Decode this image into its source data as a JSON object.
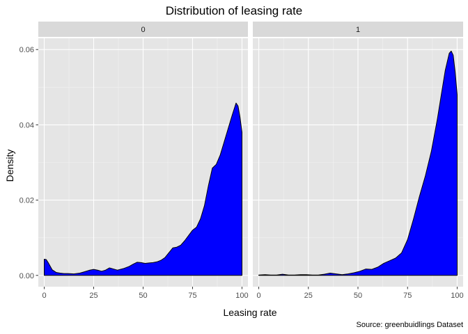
{
  "chart_data": {
    "type": "area",
    "title": "Distribution of leasing rate",
    "xlabel": "Leasing rate",
    "ylabel": "Density",
    "caption": "Source: greenbuidlings Dataset",
    "xlim": [
      -3,
      103
    ],
    "ylim": [
      -0.003,
      0.063
    ],
    "x_ticks": [
      0,
      25,
      50,
      75,
      100
    ],
    "y_ticks": [
      0.0,
      0.02,
      0.04,
      0.06
    ],
    "x_tick_labels": [
      "0",
      "25",
      "50",
      "75",
      "100"
    ],
    "y_tick_labels": [
      "0.00",
      "0.02",
      "0.04",
      "0.06"
    ],
    "fill_color": "#0000ff",
    "line_color": "#000000",
    "panel_background": "#e5e5e5",
    "strip_background": "#d9d9d9",
    "grid": true,
    "facets": [
      {
        "label": "0",
        "x": [
          0,
          1,
          2,
          4,
          6,
          8,
          10,
          12,
          15,
          18,
          20,
          23,
          25,
          27,
          29,
          31,
          33,
          35,
          37,
          40,
          43,
          45,
          47,
          49,
          51,
          53,
          55,
          57,
          59,
          61,
          63,
          65,
          67,
          69,
          71,
          73,
          75,
          77,
          79,
          81,
          83,
          85,
          87,
          89,
          91,
          93,
          95,
          97,
          98,
          99,
          100
        ],
        "y": [
          0.0043,
          0.0042,
          0.0034,
          0.0015,
          0.0008,
          0.0006,
          0.0005,
          0.0005,
          0.0004,
          0.0006,
          0.0009,
          0.0014,
          0.0016,
          0.0014,
          0.0011,
          0.0014,
          0.002,
          0.0017,
          0.0014,
          0.0018,
          0.0024,
          0.003,
          0.0035,
          0.0034,
          0.0032,
          0.0033,
          0.0034,
          0.0036,
          0.004,
          0.0047,
          0.006,
          0.0073,
          0.0075,
          0.008,
          0.0092,
          0.0106,
          0.012,
          0.0128,
          0.015,
          0.0185,
          0.0238,
          0.0285,
          0.0295,
          0.032,
          0.0355,
          0.039,
          0.0425,
          0.0458,
          0.045,
          0.042,
          0.038
        ]
      },
      {
        "label": "1",
        "x": [
          0,
          3,
          6,
          9,
          12,
          15,
          18,
          21,
          24,
          27,
          30,
          33,
          36,
          39,
          42,
          45,
          48,
          51,
          54,
          57,
          60,
          63,
          66,
          69,
          72,
          75,
          78,
          81,
          84,
          87,
          90,
          92,
          94,
          96,
          97,
          98,
          99,
          100
        ],
        "y": [
          0.0001,
          0.0002,
          0.0001,
          0.0001,
          0.0003,
          0.0001,
          0.0001,
          0.0002,
          0.0002,
          0.0001,
          0.0001,
          0.0003,
          0.0006,
          0.0004,
          0.0002,
          0.0004,
          0.0007,
          0.0011,
          0.0017,
          0.0016,
          0.0022,
          0.0032,
          0.0039,
          0.0046,
          0.006,
          0.0095,
          0.015,
          0.021,
          0.0265,
          0.033,
          0.0415,
          0.048,
          0.0545,
          0.059,
          0.0596,
          0.0585,
          0.054,
          0.048
        ]
      }
    ]
  }
}
